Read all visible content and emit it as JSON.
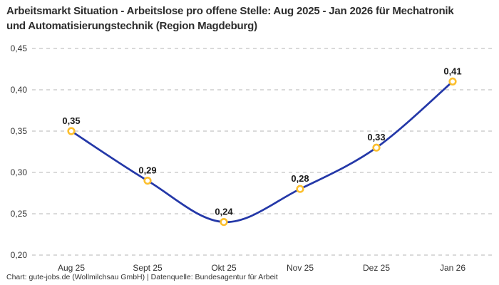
{
  "header": {
    "title": "Arbeitsmarkt Situation - Arbeitslose pro offene Stelle: Aug 2025 - Jan 2026 für Mechatronik und Automatisierungstechnik (Region Magdeburg)"
  },
  "footer": {
    "attribution": "Chart: gute-jobs.de (Wollmilchsau GmbH) | Datenquelle: Bundesagentur für Arbeit"
  },
  "chart_data": {
    "type": "line",
    "title": "Arbeitsmarkt Situation - Arbeitslose pro offene Stelle: Aug 2025 - Jan 2026 für Mechatronik und Automatisierungstechnik (Region Magdeburg)",
    "categories": [
      "Aug 25",
      "Sept 25",
      "Okt 25",
      "Nov 25",
      "Dez 25",
      "Jan 26"
    ],
    "values": [
      0.35,
      0.29,
      0.24,
      0.28,
      0.33,
      0.41
    ],
    "point_labels": [
      "0,35",
      "0,29",
      "0,24",
      "0,28",
      "0,33",
      "0,41"
    ],
    "y_tick_values": [
      0.2,
      0.25,
      0.3,
      0.35,
      0.4,
      0.45
    ],
    "y_tick_labels": [
      "0,20",
      "0,25",
      "0,30",
      "0,35",
      "0,40",
      "0,45"
    ],
    "ylim": [
      0.2,
      0.45
    ],
    "xlabel": "",
    "ylabel": "",
    "grid": "horizontal-dashed",
    "legend": "none",
    "curve": "smooth",
    "colors": {
      "line": "#2438a8",
      "marker_ring": "#fcbf2d",
      "marker_fill": "#ffffff",
      "gridline": "#c4c4c4",
      "tick_text": "#333333",
      "point_label_text": "#1a1a1a",
      "title_text": "#2d2d2d",
      "background": "#ffffff"
    }
  }
}
